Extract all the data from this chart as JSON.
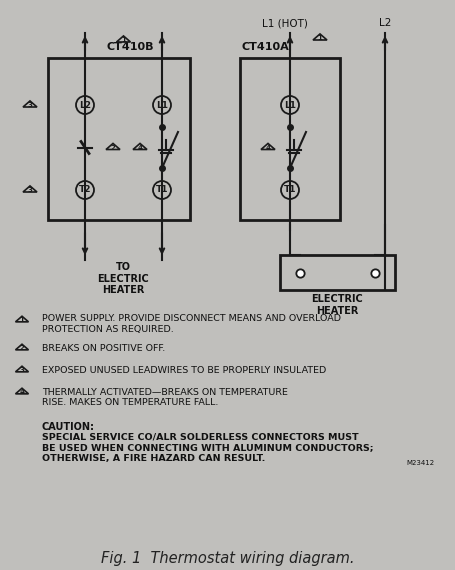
{
  "bg_color": "#c0bfbc",
  "title": "Fig. 1  Thermostat wiring diagram.",
  "title_fontsize": 10.5,
  "title_color": "#222222",
  "ct410b_label": "CT410B",
  "ct410a_label": "CT410A",
  "l1_hot_label": "L1 (HOT)",
  "l2_label": "L2",
  "note1a": "POWER SUPPLY. PROVIDE DISCONNECT MEANS AND OVERLOAD",
  "note1b": "PROTECTION AS REQUIRED.",
  "note2": "BREAKS ON POSITIVE OFF.",
  "note3": "EXPOSED UNUSED LEADWIRES TO BE PROPERLY INSULATED",
  "note4a": "THERMALLY ACTIVATED—BREAKS ON TEMPERATURE",
  "note4b": "RISE. MAKES ON TEMPERATURE FALL.",
  "caution_title": "CAUTION:",
  "caution_body": "SPECIAL SERVICE CO/ALR SOLDERLESS CONNECTORS MUST\nBE USED WHEN CONNECTING WITH ALUMINUM CONDUCTORS;\nOTHERWISE, A FIRE HAZARD CAN RESULT.",
  "model_num": "M23412",
  "to_electric_heater": "TO\nELECTRIC\nHEATER",
  "electric_heater_label": "ELECTRIC\nHEATER",
  "line_color": "#1a1a1a",
  "text_color": "#111111"
}
